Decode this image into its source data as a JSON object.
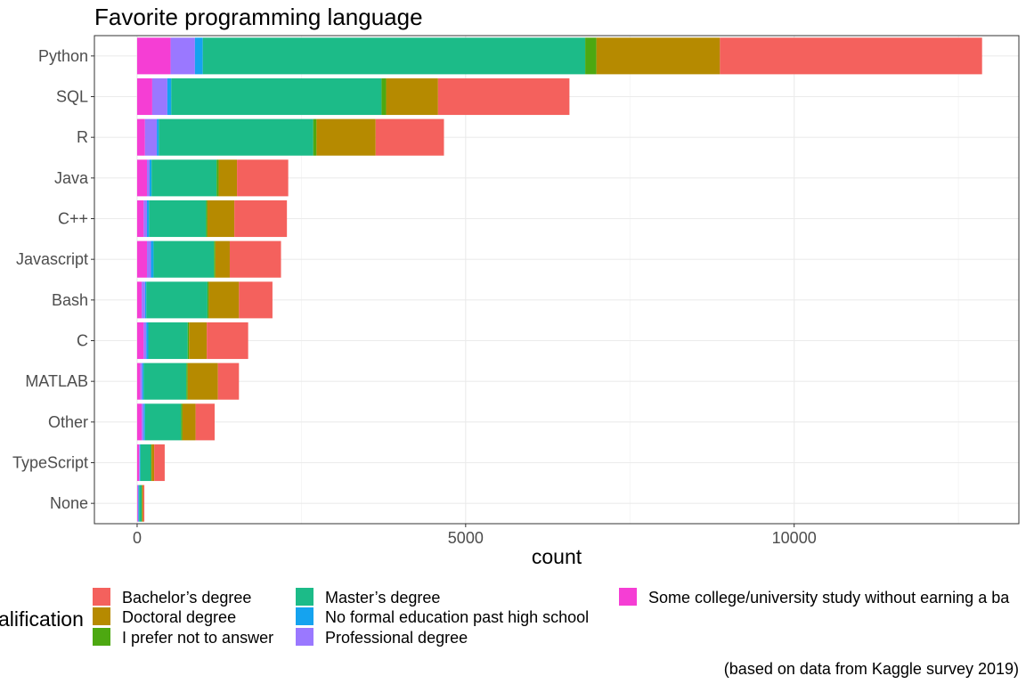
{
  "chart_data": {
    "type": "bar",
    "orientation": "horizontal",
    "stacked": true,
    "title": "Favorite programming language",
    "xlabel": "count",
    "ylabel": "",
    "caption": "(based on data from Kaggle survey 2019)",
    "legend_title_visible": "alification",
    "legend_position": "bottom",
    "grid": true,
    "xlim": [
      -650,
      13420
    ],
    "x_ticks": [
      0,
      5000,
      10000
    ],
    "x_tick_labels": [
      "0",
      "5000",
      "10000"
    ],
    "categories": [
      "Python",
      "SQL",
      "R",
      "Java",
      "C++",
      "Javascript",
      "Bash",
      "C",
      "MATLAB",
      "Other",
      "TypeScript",
      "None"
    ],
    "series": [
      {
        "name": "Some college/university study without earning a ba",
        "color": "#F53ED4",
        "values": [
          510,
          230,
          120,
          150,
          100,
          150,
          70,
          100,
          50,
          70,
          30,
          10
        ]
      },
      {
        "name": "Professional degree",
        "color": "#9A78FF",
        "values": [
          370,
          230,
          180,
          40,
          50,
          60,
          50,
          40,
          30,
          30,
          10,
          10
        ]
      },
      {
        "name": "No formal education past high school",
        "color": "#15A3EF",
        "values": [
          120,
          60,
          30,
          30,
          30,
          40,
          20,
          30,
          20,
          20,
          10,
          10
        ]
      },
      {
        "name": "Master’s degree",
        "color": "#1CBB88",
        "values": [
          5820,
          3200,
          2350,
          990,
          870,
          920,
          930,
          600,
          650,
          550,
          160,
          40
        ]
      },
      {
        "name": "I prefer not to answer",
        "color": "#4DA811",
        "values": [
          170,
          70,
          50,
          30,
          20,
          20,
          20,
          20,
          20,
          20,
          10,
          5
        ]
      },
      {
        "name": "Doctoral degree",
        "color": "#B68A00",
        "values": [
          1880,
          790,
          900,
          280,
          410,
          220,
          460,
          270,
          460,
          200,
          40,
          15
        ]
      },
      {
        "name": "Bachelor’s degree",
        "color": "#F4615D",
        "values": [
          3990,
          2000,
          1040,
          780,
          800,
          780,
          510,
          630,
          320,
          290,
          160,
          20
        ]
      }
    ],
    "legend_entries": [
      "Bachelor’s degree",
      "Doctoral degree",
      "I prefer not to answer",
      "Master’s degree",
      "No formal education past high school",
      "Professional degree",
      "Some college/university study without earning a ba"
    ]
  }
}
